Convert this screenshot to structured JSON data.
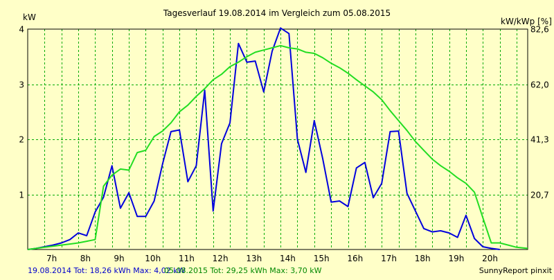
{
  "chart_data": {
    "type": "line",
    "title": "Tagesverlauf 19.08.2014 im Vergleich zum 05.08.2015",
    "ylabel_left": "kW",
    "ylabel_right": "kW/kWp [%]",
    "y_left_range": [
      0,
      4
    ],
    "y_left_ticks": [
      "1",
      "2",
      "3",
      "4"
    ],
    "y_right_ticks": [
      "20,7",
      "41,3",
      "62,0",
      "82,6"
    ],
    "x_range_hours": [
      6.0,
      20.83
    ],
    "x_tick_labels": [
      "7h",
      "8h",
      "9h",
      "10h",
      "11h",
      "12h",
      "13h",
      "14h",
      "15h",
      "16h",
      "17h",
      "18h",
      "19h",
      "20h"
    ],
    "grid": true,
    "series": [
      {
        "date": "19.08.2014",
        "color": "#0000dd",
        "x": [
          6.0,
          6.25,
          6.5,
          6.75,
          7.0,
          7.25,
          7.5,
          7.75,
          8.0,
          8.25,
          8.5,
          8.75,
          9.0,
          9.25,
          9.5,
          9.75,
          10.0,
          10.25,
          10.5,
          10.75,
          11.0,
          11.25,
          11.5,
          11.75,
          12.0,
          12.25,
          12.5,
          12.75,
          13.0,
          13.25,
          13.5,
          13.75,
          14.0,
          14.25,
          14.5,
          14.75,
          15.0,
          15.25,
          15.5,
          15.75,
          16.0,
          16.25,
          16.5,
          16.75,
          17.0,
          17.25,
          17.5,
          17.75,
          18.0,
          18.25,
          18.5,
          18.75,
          19.0,
          19.25,
          19.5,
          19.75,
          20.0
        ],
        "y": [
          0.0,
          0.02,
          0.05,
          0.08,
          0.12,
          0.18,
          0.3,
          0.25,
          0.68,
          0.95,
          1.52,
          0.75,
          1.03,
          0.6,
          0.6,
          0.88,
          1.55,
          2.14,
          2.17,
          1.23,
          1.52,
          2.89,
          0.7,
          1.92,
          2.3,
          3.74,
          3.4,
          3.42,
          2.86,
          3.6,
          4.02,
          3.92,
          2.0,
          1.4,
          2.34,
          1.65,
          0.86,
          0.88,
          0.78,
          1.48,
          1.58,
          0.94,
          1.2,
          2.14,
          2.15,
          1.02,
          0.7,
          0.38,
          0.32,
          0.34,
          0.3,
          0.22,
          0.62,
          0.2,
          0.05,
          0.02,
          0.0
        ]
      },
      {
        "date": "05.08.2015",
        "color": "#22dd22",
        "x": [
          6.0,
          6.25,
          6.5,
          6.75,
          7.0,
          7.25,
          7.5,
          7.75,
          8.0,
          8.25,
          8.5,
          8.75,
          9.0,
          9.25,
          9.5,
          9.75,
          10.0,
          10.25,
          10.5,
          10.75,
          11.0,
          11.25,
          11.5,
          11.75,
          12.0,
          12.25,
          12.5,
          12.75,
          13.0,
          13.25,
          13.5,
          13.75,
          14.0,
          14.25,
          14.5,
          14.75,
          15.0,
          15.25,
          15.5,
          15.75,
          16.0,
          16.25,
          16.5,
          16.75,
          17.0,
          17.25,
          17.5,
          17.75,
          18.0,
          18.25,
          18.5,
          18.75,
          19.0,
          19.25,
          19.5,
          19.75,
          20.0,
          20.25,
          20.5,
          20.83
        ],
        "y": [
          0.0,
          0.02,
          0.04,
          0.06,
          0.08,
          0.1,
          0.12,
          0.15,
          0.18,
          1.15,
          1.35,
          1.46,
          1.44,
          1.76,
          1.8,
          2.05,
          2.15,
          2.3,
          2.5,
          2.62,
          2.78,
          2.92,
          3.08,
          3.18,
          3.32,
          3.4,
          3.5,
          3.58,
          3.62,
          3.66,
          3.7,
          3.66,
          3.64,
          3.58,
          3.56,
          3.48,
          3.38,
          3.3,
          3.2,
          3.08,
          2.97,
          2.86,
          2.72,
          2.52,
          2.34,
          2.16,
          1.96,
          1.8,
          1.64,
          1.52,
          1.42,
          1.3,
          1.2,
          1.04,
          0.58,
          0.12,
          0.12,
          0.08,
          0.04,
          0.02
        ]
      }
    ],
    "footer": {
      "s1_text": "19.08.2014 Tot: 18,26 kWh Max: 4,02 kW",
      "s2_text": "05.08.2015 Tot: 29,25 kWh Max: 3,70 kW",
      "credit": "SunnyReport pinxit"
    }
  }
}
